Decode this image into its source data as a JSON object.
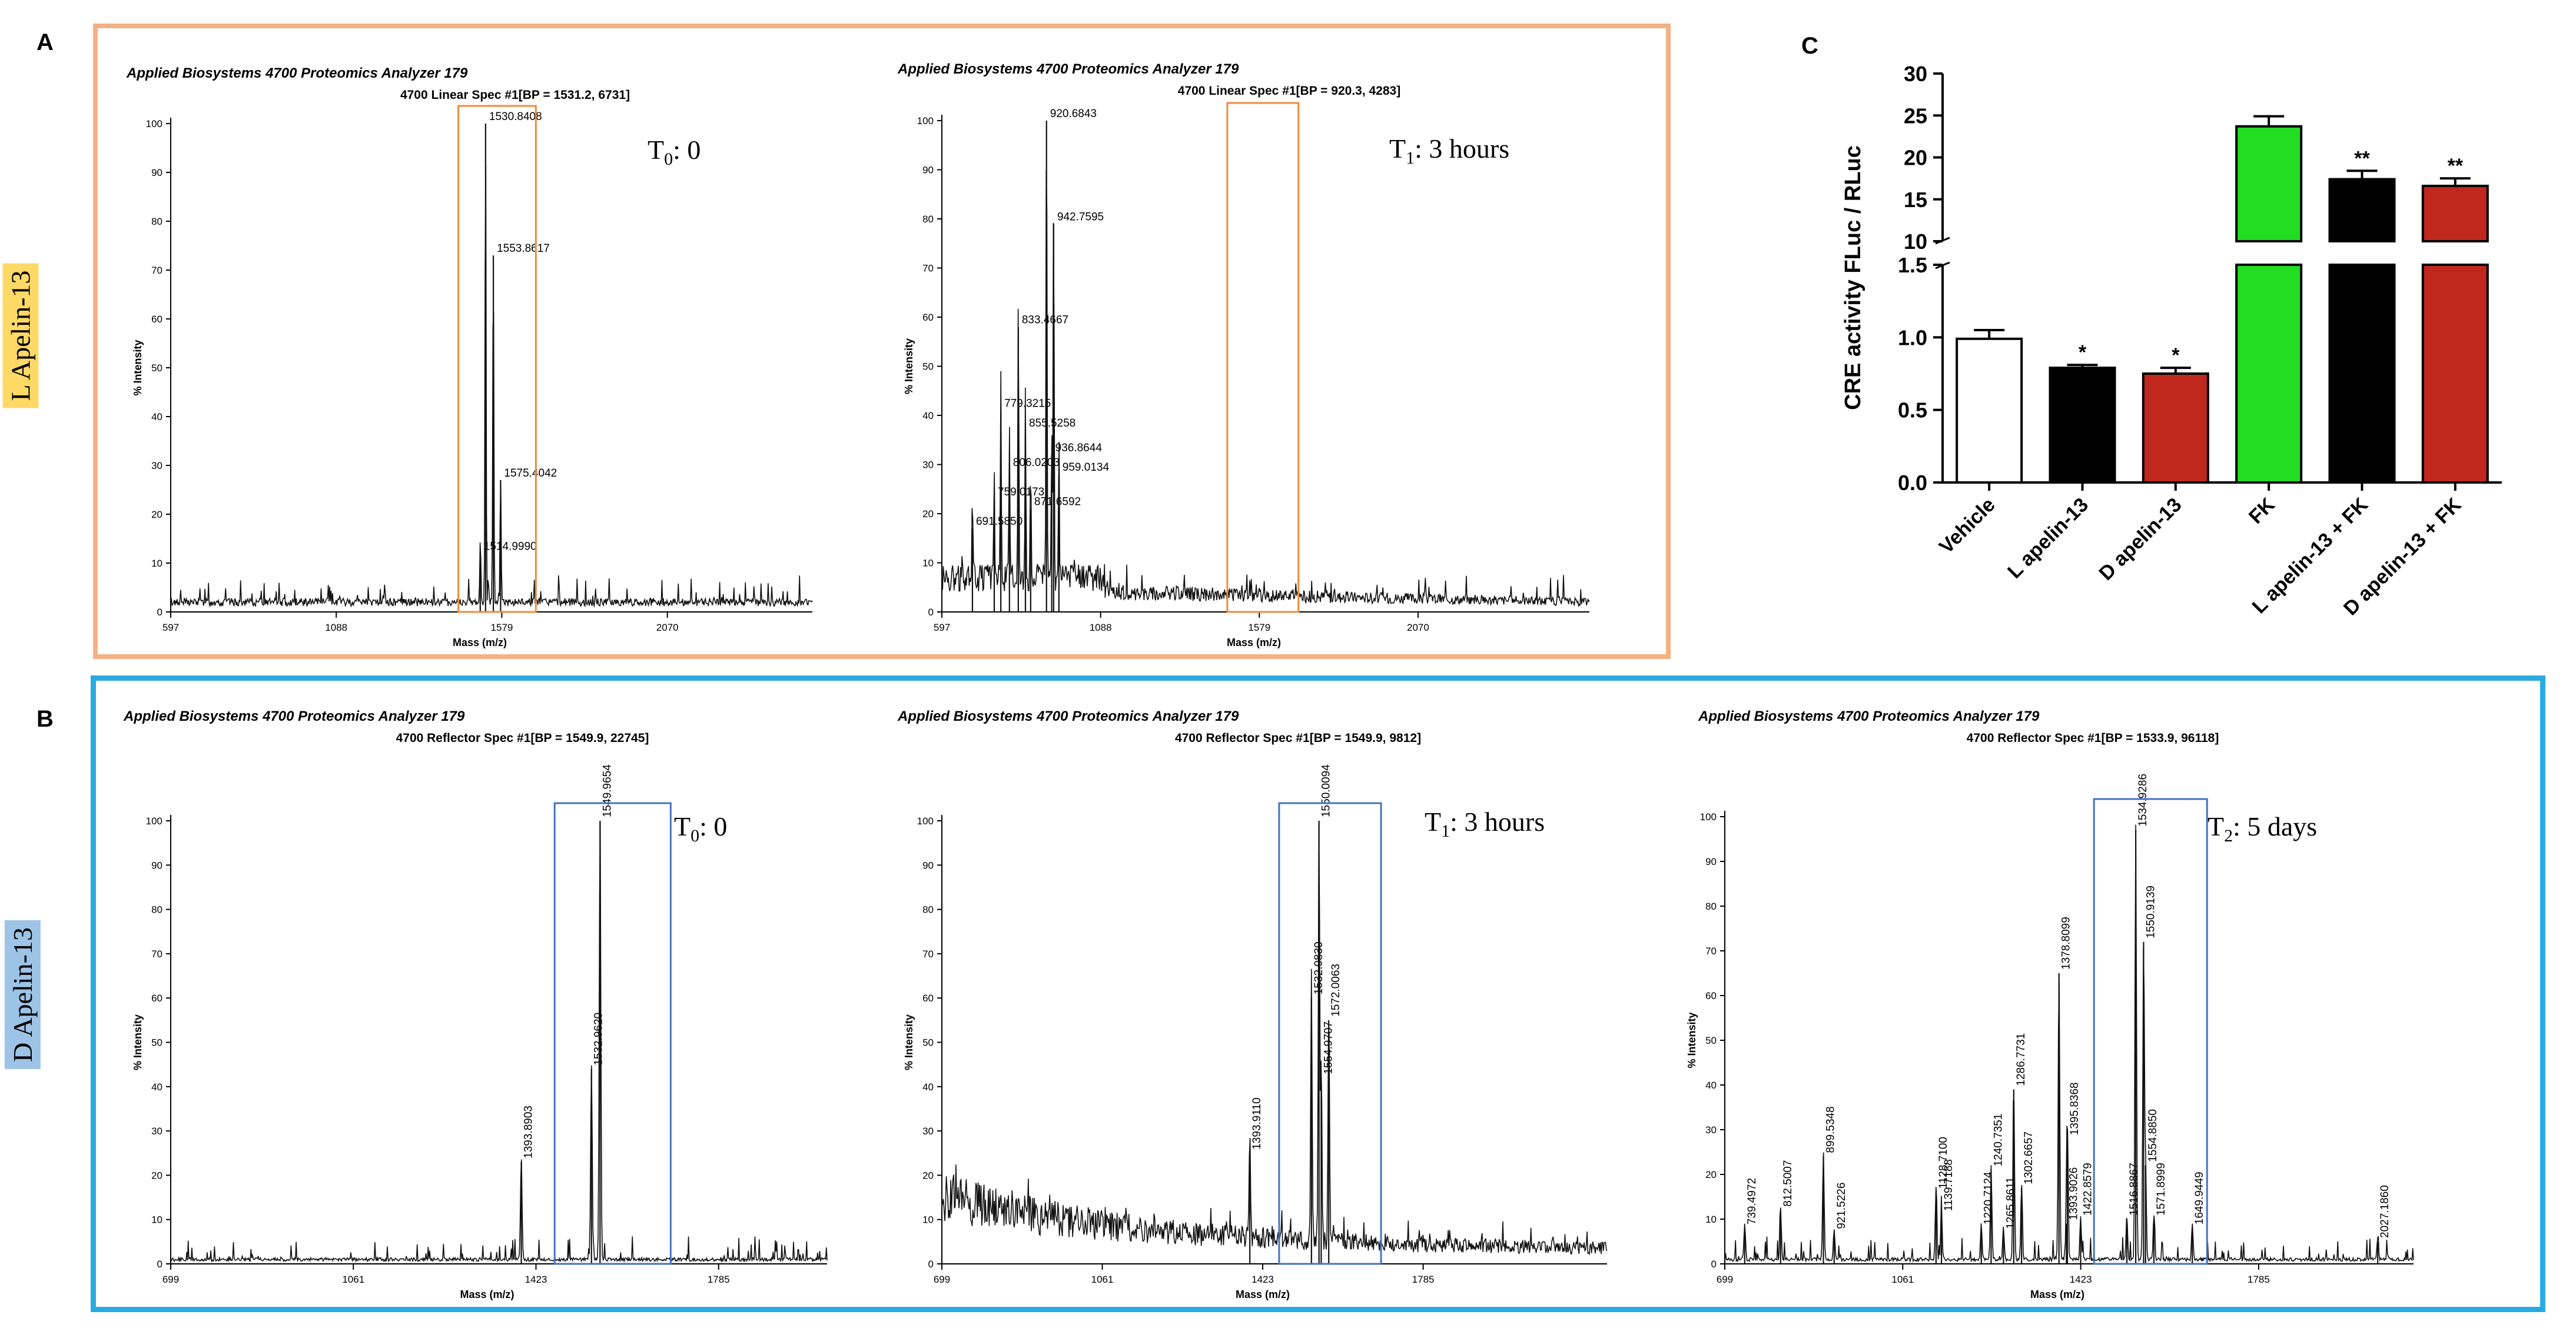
{
  "panel_labels": {
    "a": "A",
    "b": "B",
    "c": "C"
  },
  "side_labels": {
    "a": "L Apelin-13",
    "b": "D Apelin-13"
  },
  "colors": {
    "frame_a": "#f4b183",
    "frame_b": "#29abe2",
    "box_a": "#f08a3c",
    "box_b": "#4472c4",
    "vehicle": "#ffffff",
    "black": "#000000",
    "red": "#c0281e",
    "green": "#22dd22"
  },
  "chart_data": [
    {
      "type": "line",
      "id": "A-T0",
      "title": "Applied Biosystems 4700 Proteomics Analyzer 179",
      "subtitle": "4700 Linear Spec #1[BP = 1531.2, 6731]",
      "time_label": "T0: 0",
      "time_main": "T",
      "time_sub": "0",
      "time_rest": ": 0",
      "xlabel": "Mass (m/z)",
      "ylabel": "% Intensity",
      "xlim": [
        597,
        2500
      ],
      "ylim": [
        0,
        100
      ],
      "xticks": [
        597,
        1088,
        1579,
        2070
      ],
      "yticks": [
        0,
        10,
        20,
        30,
        40,
        50,
        60,
        70,
        80,
        90,
        100
      ],
      "baseline": 2,
      "peaks": [
        {
          "mz": 1514.999,
          "y": 12,
          "label": "1514.9990"
        },
        {
          "mz": 1530.8408,
          "y": 100,
          "label": "1530.8408"
        },
        {
          "mz": 1553.8617,
          "y": 73,
          "label": "1553.8617"
        },
        {
          "mz": 1575.4042,
          "y": 27,
          "label": "1575.4042"
        }
      ],
      "highlight": [
        1450,
        1680
      ]
    },
    {
      "type": "line",
      "id": "A-T1",
      "title": "Applied Biosystems 4700 Proteomics Analyzer 179",
      "subtitle": "4700 Linear Spec #1[BP = 920.3, 4283]",
      "time_label": "T1: 3 hours",
      "time_main": "T",
      "time_sub": "1",
      "time_rest": ":  3 hours",
      "xlabel": "Mass (m/z)",
      "ylabel": "% Intensity",
      "xlim": [
        597,
        2600
      ],
      "ylim": [
        0,
        100
      ],
      "xticks": [
        597,
        1088,
        1579,
        2070
      ],
      "yticks": [
        0,
        10,
        20,
        30,
        40,
        50,
        60,
        70,
        80,
        90,
        100
      ],
      "baseline": 4,
      "peaks": [
        {
          "mz": 691.585,
          "y": 17,
          "label": "691.5850"
        },
        {
          "mz": 759.0173,
          "y": 23,
          "label": "759.0173"
        },
        {
          "mz": 779.3215,
          "y": 41,
          "label": "779.3215"
        },
        {
          "mz": 806.0203,
          "y": 29,
          "label": "806.0203"
        },
        {
          "mz": 833.4667,
          "y": 58,
          "label": "833.4667"
        },
        {
          "mz": 855.5258,
          "y": 37,
          "label": "855.5258"
        },
        {
          "mz": 871.6592,
          "y": 21,
          "label": "871.6592"
        },
        {
          "mz": 920.6843,
          "y": 100,
          "label": "920.6843"
        },
        {
          "mz": 936.8644,
          "y": 32,
          "label": "936.8644"
        },
        {
          "mz": 942.7595,
          "y": 79,
          "label": "942.7595"
        },
        {
          "mz": 959.0134,
          "y": 28,
          "label": "959.0134"
        }
      ],
      "highlight": [
        1480,
        1700
      ]
    },
    {
      "type": "line",
      "id": "B-T0",
      "title": "Applied Biosystems 4700 Proteomics Analyzer 179",
      "subtitle": "4700 Reflector Spec #1[BP = 1549.9, 22745]",
      "time_label": "T0: 0",
      "time_main": "T",
      "time_sub": "0",
      "time_rest": ": 0",
      "xlabel": "Mass (m/z)",
      "ylabel": "% Intensity",
      "xlim": [
        699,
        2000
      ],
      "ylim": [
        0,
        100
      ],
      "xticks": [
        699,
        1061,
        1423,
        1785
      ],
      "yticks": [
        0,
        10,
        20,
        30,
        40,
        50,
        60,
        70,
        80,
        90,
        100
      ],
      "baseline": 1,
      "peaks": [
        {
          "mz": 1393.8903,
          "y": 23,
          "label": "1393.8903"
        },
        {
          "mz": 1532.962,
          "y": 44,
          "label": "1532.9620"
        },
        {
          "mz": 1549.9654,
          "y": 100,
          "label": "1549.9654"
        }
      ],
      "highlight": [
        1460,
        1690
      ]
    },
    {
      "type": "line",
      "id": "B-T1",
      "title": "Applied Biosystems 4700 Proteomics Analyzer 179",
      "subtitle": "4700 Reflector Spec #1[BP = 1549.9, 9812]",
      "time_label": "T1: 3 hours",
      "time_main": "T",
      "time_sub": "1",
      "time_rest": ": 3 hours",
      "xlabel": "Mass (m/z)",
      "ylabel": "% Intensity",
      "xlim": [
        699,
        2200
      ],
      "ylim": [
        0,
        100
      ],
      "xticks": [
        699,
        1061,
        1423,
        1785
      ],
      "yticks": [
        0,
        10,
        20,
        30,
        40,
        50,
        60,
        70,
        80,
        90,
        100
      ],
      "baseline": 12,
      "peaks": [
        {
          "mz": 1393.911,
          "y": 25,
          "label": "1393.9110"
        },
        {
          "mz": 1532.983,
          "y": 60,
          "label": "1532.9830"
        },
        {
          "mz": 1550.0094,
          "y": 100,
          "label": "1550.0094"
        },
        {
          "mz": 1554.9707,
          "y": 42,
          "label": "1554.9707"
        },
        {
          "mz": 1572.0063,
          "y": 55,
          "label": "1572.0063"
        }
      ],
      "highlight": [
        1460,
        1690
      ]
    },
    {
      "type": "line",
      "id": "B-T2",
      "title": "Applied Biosystems 4700 Proteomics Analyzer 179",
      "subtitle": "4700 Reflector Spec #1[BP = 1533.9, 96118]",
      "time_label": "T2: 5 days",
      "time_main": "T",
      "time_sub": "2",
      "time_rest": ":  5 days",
      "xlabel": "Mass (m/z)",
      "ylabel": "% Intensity",
      "xlim": [
        699,
        2100
      ],
      "ylim": [
        0,
        100
      ],
      "xticks": [
        699,
        1061,
        1423,
        1785
      ],
      "yticks": [
        0,
        10,
        20,
        30,
        40,
        50,
        60,
        70,
        80,
        90,
        100
      ],
      "baseline": 1,
      "peaks": [
        {
          "mz": 739.4972,
          "y": 8,
          "label": "739.4972"
        },
        {
          "mz": 812.5007,
          "y": 12,
          "label": "812.5007"
        },
        {
          "mz": 899.5348,
          "y": 24,
          "label": "899.5348"
        },
        {
          "mz": 921.5226,
          "y": 7,
          "label": "921.5226"
        },
        {
          "mz": 1128.71,
          "y": 16,
          "label": "1128.7100"
        },
        {
          "mz": 1139.7188,
          "y": 11,
          "label": "1139.7188"
        },
        {
          "mz": 1220.7124,
          "y": 8,
          "label": "1220.7124"
        },
        {
          "mz": 1240.7351,
          "y": 21,
          "label": "1240.7351"
        },
        {
          "mz": 1265.8611,
          "y": 7,
          "label": "1265.8611"
        },
        {
          "mz": 1286.7731,
          "y": 39,
          "label": "1286.7731"
        },
        {
          "mz": 1302.6657,
          "y": 17,
          "label": "1302.6657"
        },
        {
          "mz": 1378.8099,
          "y": 65,
          "label": "1378.8099"
        },
        {
          "mz": 1393.9026,
          "y": 9,
          "label": "1393.9026"
        },
        {
          "mz": 1395.8368,
          "y": 28,
          "label": "1395.8368"
        },
        {
          "mz": 1422.8579,
          "y": 10,
          "label": "1422.8579"
        },
        {
          "mz": 1516.8867,
          "y": 10,
          "label": "1516.8867"
        },
        {
          "mz": 1534.9286,
          "y": 97,
          "label": "1534.9286"
        },
        {
          "mz": 1550.9139,
          "y": 72,
          "label": "1550.9139"
        },
        {
          "mz": 1554.885,
          "y": 22,
          "label": "1554.8850"
        },
        {
          "mz": 1571.8999,
          "y": 10,
          "label": "1571.8999"
        },
        {
          "mz": 1649.9449,
          "y": 8,
          "label": "1649.9449"
        },
        {
          "mz": 2027.186,
          "y": 5,
          "label": "2027.1860"
        }
      ],
      "highlight": [
        1450,
        1680
      ]
    },
    {
      "type": "bar",
      "id": "C",
      "ylabel": "CRE activity FLuc / RLuc",
      "categories": [
        "Vehicle",
        "L apelin-13",
        "D apelin-13",
        "FK",
        "L apelin-13 + FK",
        "D apelin-13 + FK"
      ],
      "values": [
        0.99,
        0.79,
        0.75,
        23.7,
        17.4,
        16.6
      ],
      "errors": [
        0.06,
        0.02,
        0.04,
        1.2,
        1.0,
        0.9
      ],
      "colors": [
        "#ffffff",
        "#000000",
        "#c0281e",
        "#22dd22",
        "#000000",
        "#c0281e"
      ],
      "significance": [
        "",
        "*",
        "*",
        "",
        "**",
        "**"
      ],
      "lower_segment": {
        "ylim": [
          0,
          1.5
        ],
        "ticks": [
          "0.0",
          "0.5",
          "1.0",
          "1.5"
        ]
      },
      "upper_segment": {
        "ylim": [
          10,
          30
        ],
        "ticks": [
          "10",
          "15",
          "20",
          "25",
          "30"
        ]
      }
    }
  ]
}
